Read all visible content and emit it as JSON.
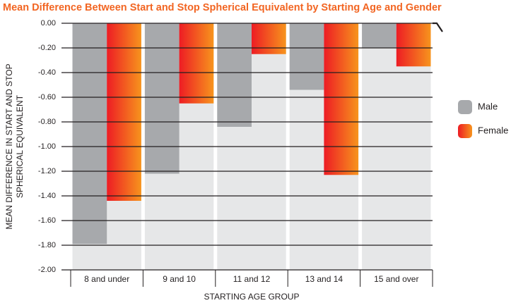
{
  "chart_data": {
    "type": "bar",
    "title": "Mean Difference Between Start and Stop Spherical Equivalent by Starting Age and Gender",
    "y_label": [
      "MEAN DIFFERENCE IN START AND STOP",
      "SPHERICAL EQUIVALENT"
    ],
    "x_label": "STARTING AGE GROUP",
    "categories": [
      "8 and under",
      "9 and 10",
      "11 and 12",
      "13 and 14",
      "15 and over"
    ],
    "series": [
      {
        "name": "Male",
        "color": "#a7a9ac",
        "values": [
          -1.79,
          -1.22,
          -0.84,
          -0.54,
          -0.2
        ]
      },
      {
        "name": "Female",
        "color": "#f26522",
        "gradient": [
          "#ed1c24",
          "#f7941d"
        ],
        "values": [
          -1.44,
          -0.65,
          -0.25,
          -1.23,
          -0.35
        ]
      }
    ],
    "ylim": [
      -2,
      0
    ],
    "yticks": [
      {
        "value": 0,
        "label": "0.00"
      },
      {
        "value": -0.2,
        "label": "-0.20"
      },
      {
        "value": -0.4,
        "label": "-0.40"
      },
      {
        "value": -0.6,
        "label": "-0.60"
      },
      {
        "value": -0.8,
        "label": "-0.80"
      },
      {
        "value": -1,
        "label": "-1.00"
      },
      {
        "value": -1.2,
        "label": "-1.20"
      },
      {
        "value": -1.4,
        "label": "-1.40"
      },
      {
        "value": -1.6,
        "label": "-1.60"
      },
      {
        "value": -1.8,
        "label": "-1.80"
      },
      {
        "value": -2,
        "label": "-2.00"
      }
    ],
    "grid": true,
    "legend": "right"
  }
}
